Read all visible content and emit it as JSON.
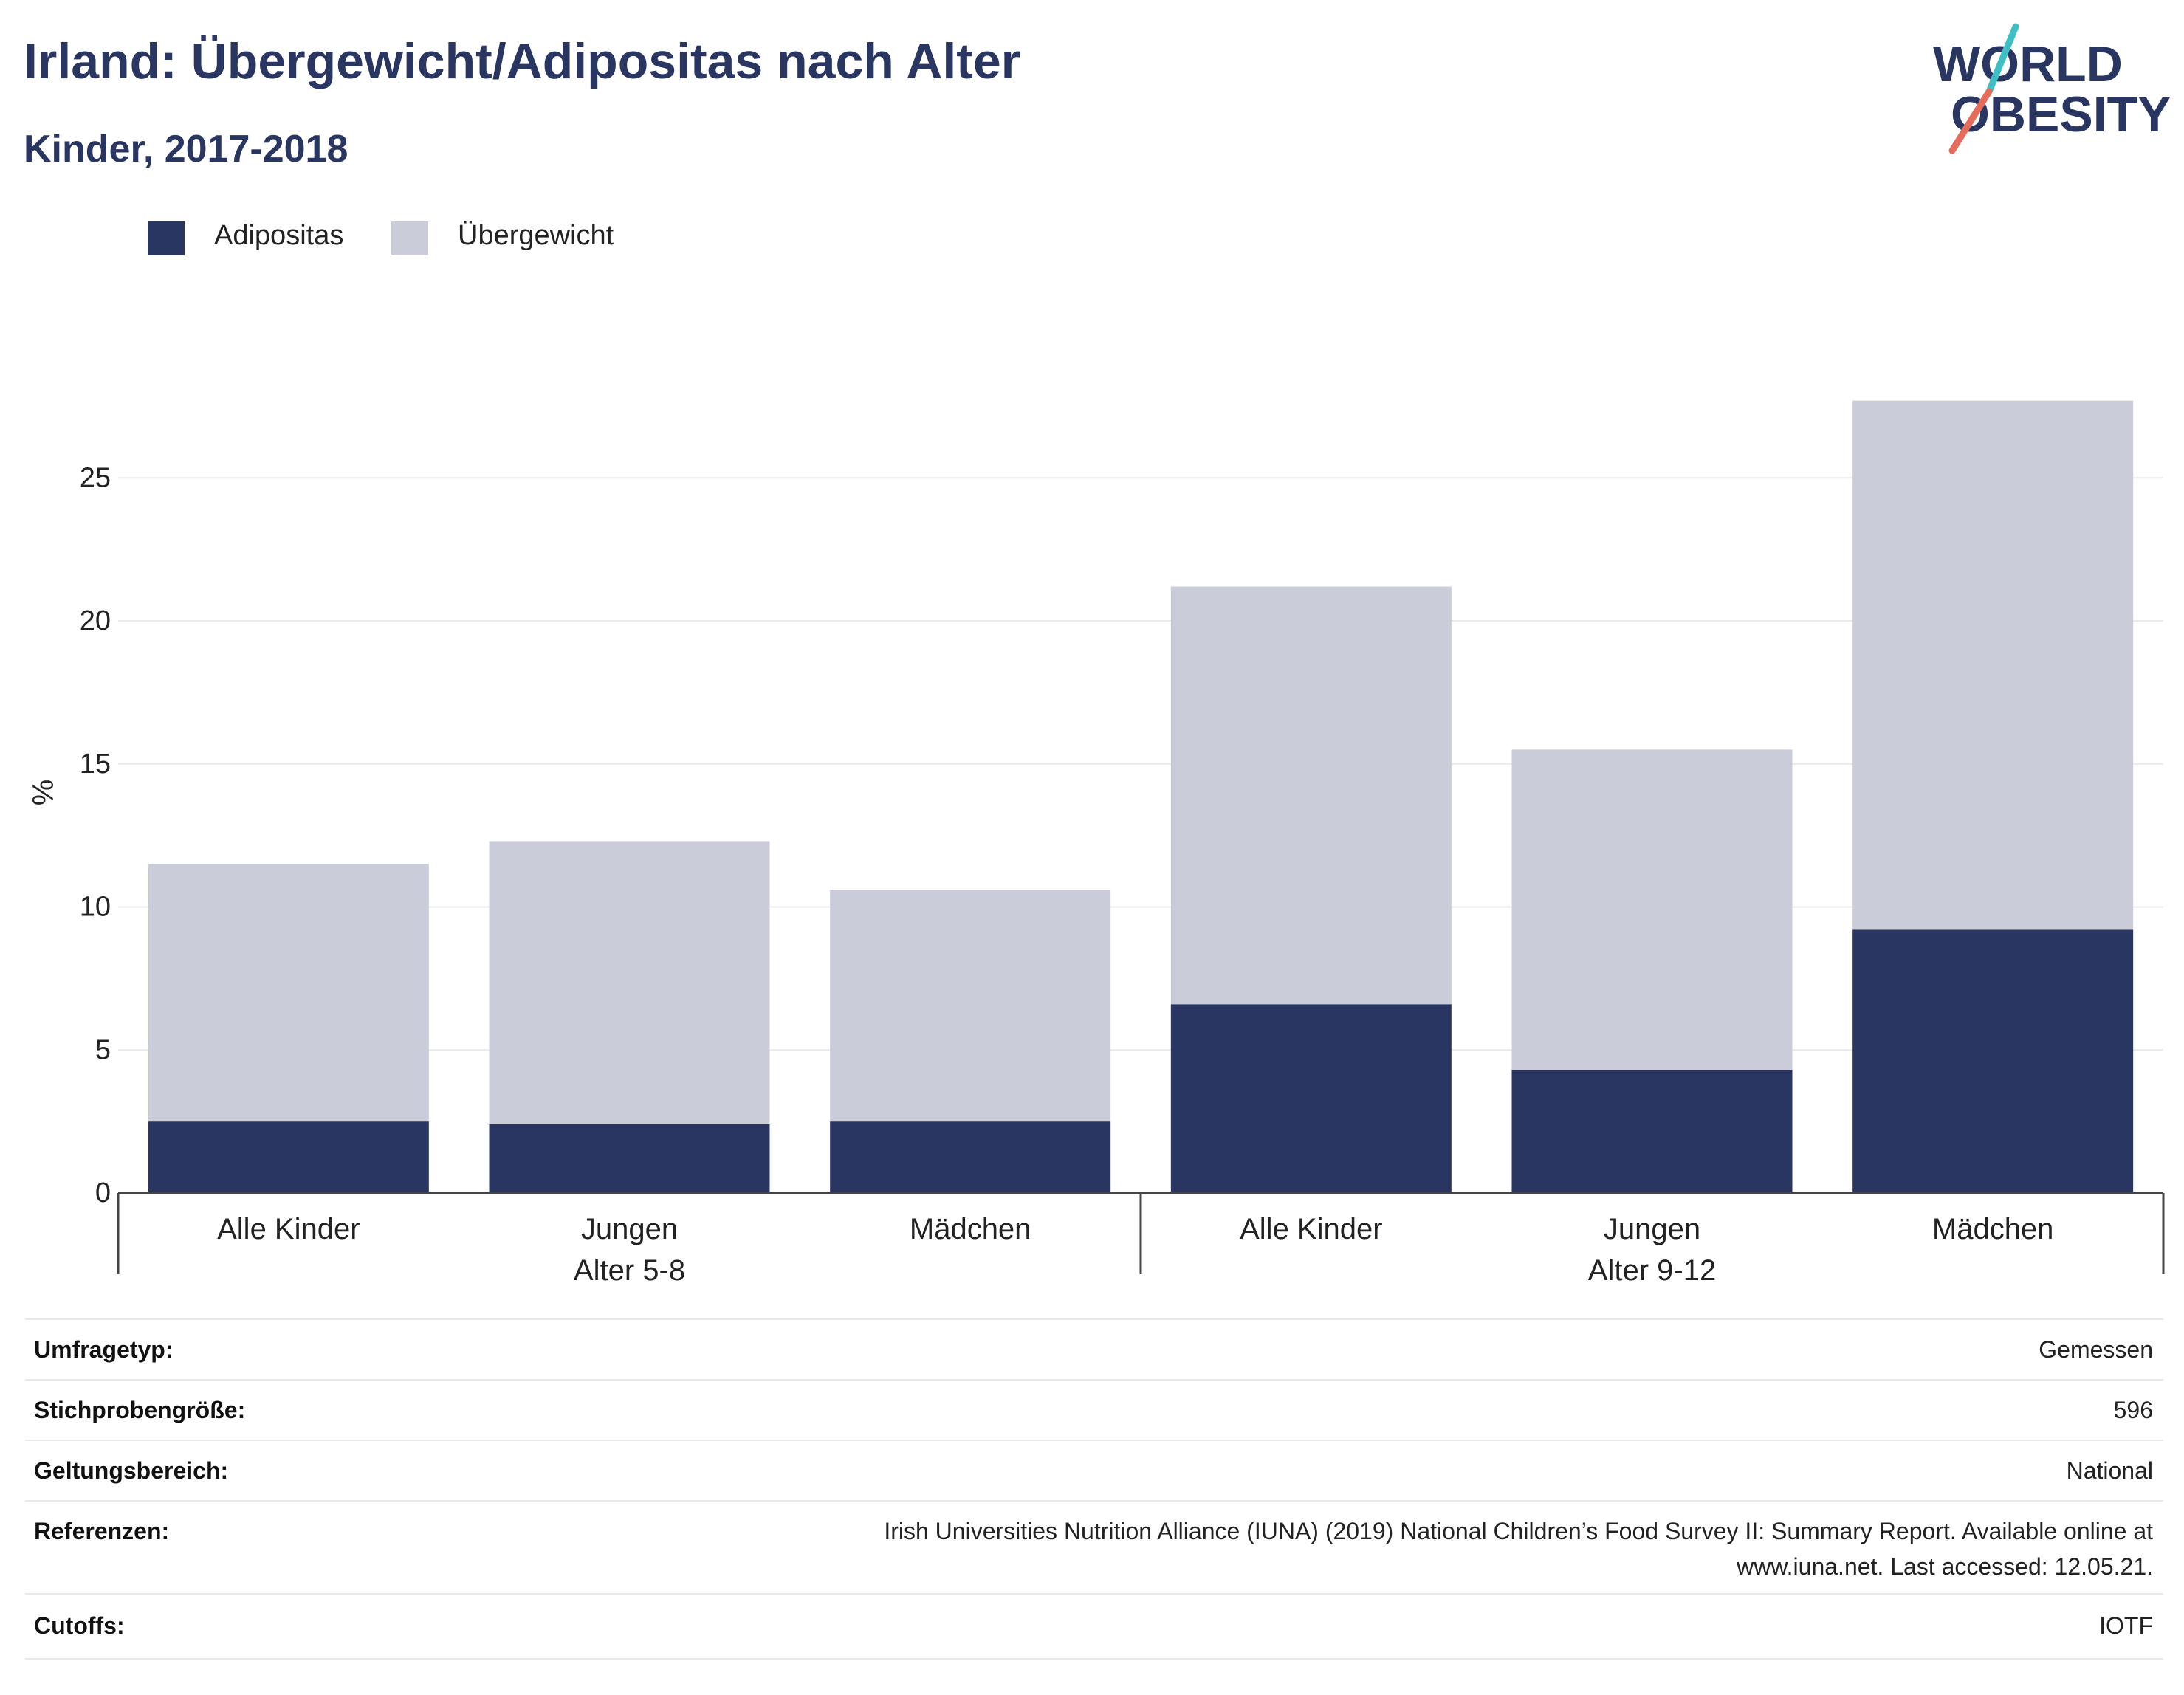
{
  "header": {
    "title": "Irland: Übergewicht/Adipositas nach Alter",
    "subtitle": "Kinder, 2017-2018"
  },
  "logo": {
    "line1": "WORLD",
    "line2": "OBESITY",
    "colors": {
      "text": "#2a3662",
      "slash_top": "#3dbfc4",
      "slash_bottom": "#e56b5d"
    }
  },
  "legend": [
    {
      "label": "Adipositas",
      "color": "#2a3662"
    },
    {
      "label": "Übergewicht",
      "color": "#cacdd9"
    }
  ],
  "chart_data": {
    "type": "bar",
    "stacked": true,
    "ylabel": "%",
    "ylim": [
      0,
      28
    ],
    "yticks": [
      0,
      5,
      10,
      15,
      20,
      25
    ],
    "grid": true,
    "legend_position": "top-left",
    "groups": [
      {
        "label": "Alter 5-8",
        "categories": [
          "Alle Kinder",
          "Jungen",
          "Mädchen"
        ]
      },
      {
        "label": "Alter 9-12",
        "categories": [
          "Alle Kinder",
          "Jungen",
          "Mädchen"
        ]
      }
    ],
    "categories": [
      "Alle Kinder",
      "Jungen",
      "Mädchen",
      "Alle Kinder",
      "Jungen",
      "Mädchen"
    ],
    "series": [
      {
        "name": "Adipositas",
        "color": "#2a3662",
        "values": [
          2.5,
          2.4,
          2.5,
          6.6,
          4.3,
          9.2
        ]
      },
      {
        "name": "Übergewicht",
        "color": "#cacdd9",
        "values": [
          9.0,
          9.9,
          8.1,
          14.6,
          11.2,
          18.5
        ]
      }
    ]
  },
  "meta": [
    {
      "key": "Umfragetyp:",
      "value": "Gemessen"
    },
    {
      "key": "Stichprobengröße:",
      "value": "596"
    },
    {
      "key": "Geltungsbereich:",
      "value": "National"
    },
    {
      "key": "Referenzen:",
      "value": "Irish Universities Nutrition Alliance (IUNA) (2019) National Children’s Food Survey II: Summary Report. Available online at",
      "value2": "www.iuna.net. Last accessed: 12.05.21."
    },
    {
      "key": "Cutoffs:",
      "value": "IOTF"
    }
  ]
}
